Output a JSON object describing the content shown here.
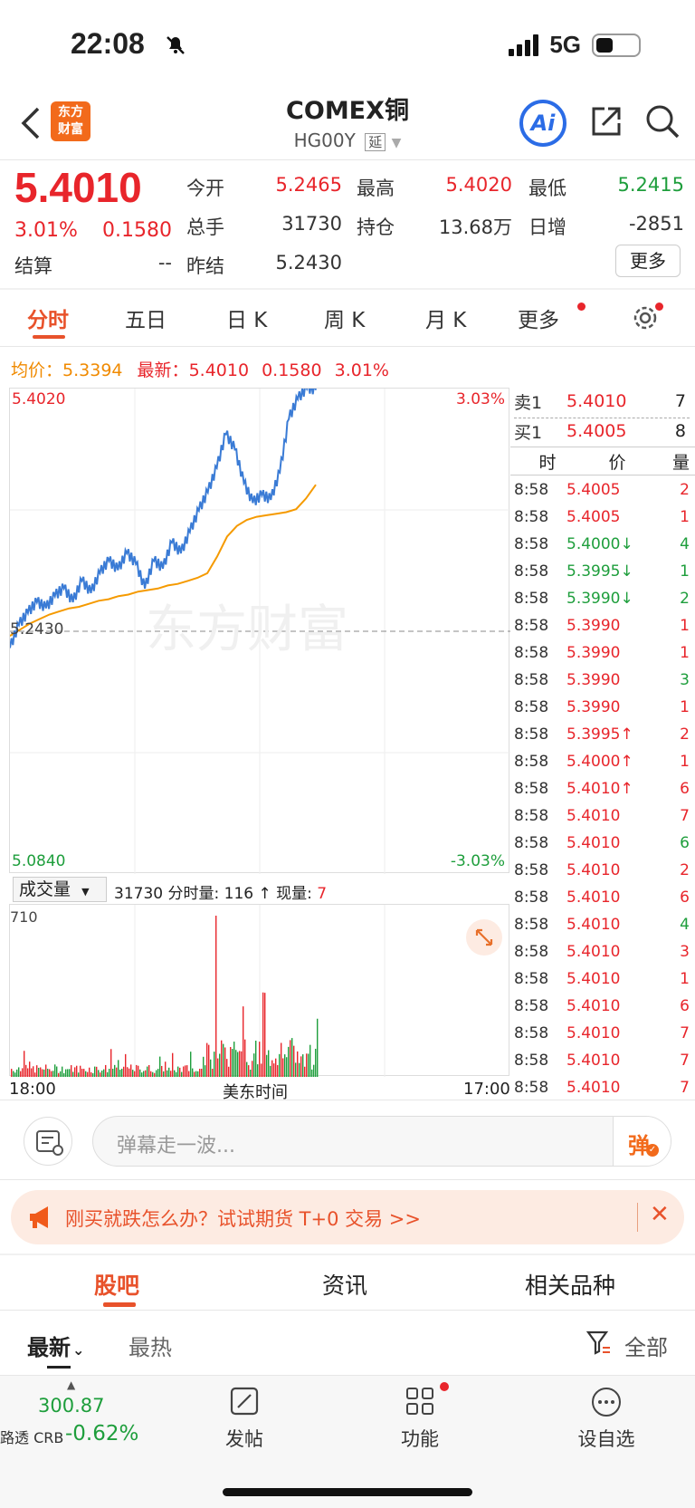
{
  "status": {
    "time": "22:08",
    "network": "5G"
  },
  "header": {
    "logo_text": "东方财富",
    "title": "COMEX铜",
    "code": "HG00Y",
    "delay_tag": "延",
    "ai_label": "Ai"
  },
  "quote": {
    "price": "5.4010",
    "change_pct": "3.01%",
    "change": "0.1580",
    "settle_label": "结算",
    "settle_value": "--",
    "open_label": "今开",
    "open_value": "5.2465",
    "high_label": "最高",
    "high_value": "5.4020",
    "low_label": "最低",
    "low_value": "5.2415",
    "volume_label": "总手",
    "volume_value": "31730",
    "oi_label": "持仓",
    "oi_value": "13.68万",
    "daily_inc_label": "日增",
    "daily_inc_value": "-2851",
    "prev_settle_label": "昨结",
    "prev_settle_value": "5.2430",
    "more_label": "更多"
  },
  "tabs": [
    "分时",
    "五日",
    "日 K",
    "周 K",
    "月 K",
    "更多"
  ],
  "chart_info": {
    "avg_label": "均价：",
    "avg_value": "5.3394",
    "latest_label": "最新：",
    "latest_value": "5.4010",
    "latest_change": "0.1580",
    "latest_pct": "3.01%"
  },
  "chart_data": {
    "type": "line",
    "ylim": [
      5.084,
      5.402
    ],
    "y_top_label": "5.4020",
    "y_mid_label": "5.2430",
    "y_bottom_label": "5.0840",
    "pct_top_label": "3.03%",
    "pct_bottom_label": "-3.03%",
    "x_start_label": "18:00",
    "x_mid_label": "美东时间",
    "x_end_label": "17:00",
    "watermark": "东方财富",
    "series": [
      {
        "values": [
          5.232,
          5.247,
          5.255,
          5.262,
          5.258,
          5.266,
          5.271,
          5.262,
          5.276,
          5.268,
          5.281,
          5.289,
          5.283,
          5.294,
          5.287,
          5.271,
          5.289,
          5.284,
          5.301,
          5.294,
          5.308,
          5.322,
          5.334,
          5.35,
          5.372,
          5.362,
          5.34,
          5.327,
          5.332,
          5.329,
          5.347,
          5.382,
          5.395,
          5.402,
          5.401
        ]
      },
      {
        "values": [
          5.24,
          5.244,
          5.248,
          5.251,
          5.254,
          5.256,
          5.258,
          5.259,
          5.261,
          5.263,
          5.264,
          5.266,
          5.267,
          5.269,
          5.27,
          5.271,
          5.273,
          5.274,
          5.276,
          5.278,
          5.281,
          5.292,
          5.305,
          5.312,
          5.316,
          5.318,
          5.319,
          5.32,
          5.321,
          5.323,
          5.33,
          5.339
        ]
      }
    ]
  },
  "volume": {
    "selector": "成交量",
    "total": "31730",
    "tick_label": "分时量:",
    "tick_value": "116",
    "arrow": "↑",
    "now_label": "现量:",
    "now_value": "7",
    "scale_label": "710"
  },
  "orderbook": {
    "ask_label": "卖1",
    "ask_price": "5.4010",
    "ask_qty": "7",
    "bid_label": "买1",
    "bid_price": "5.4005",
    "bid_qty": "8",
    "head_time": "时",
    "head_price": "价",
    "head_qty": "量",
    "trades": [
      {
        "t": "8:58",
        "p": "5.4005",
        "q": "2",
        "qc": "red"
      },
      {
        "t": "8:58",
        "p": "5.4005",
        "q": "1",
        "qc": "red"
      },
      {
        "t": "8:58",
        "p": "5.4000↓",
        "q": "4",
        "qc": "green"
      },
      {
        "t": "8:58",
        "p": "5.3995↓",
        "q": "1",
        "qc": "green"
      },
      {
        "t": "8:58",
        "p": "5.3990↓",
        "q": "2",
        "qc": "green"
      },
      {
        "t": "8:58",
        "p": "5.3990",
        "q": "1",
        "qc": "red"
      },
      {
        "t": "8:58",
        "p": "5.3990",
        "q": "1",
        "qc": "red"
      },
      {
        "t": "8:58",
        "p": "5.3990",
        "q": "3",
        "qc": "green"
      },
      {
        "t": "8:58",
        "p": "5.3990",
        "q": "1",
        "qc": "red"
      },
      {
        "t": "8:58",
        "p": "5.3995↑",
        "q": "2",
        "qc": "red"
      },
      {
        "t": "8:58",
        "p": "5.4000↑",
        "q": "1",
        "qc": "red"
      },
      {
        "t": "8:58",
        "p": "5.4010↑",
        "q": "6",
        "qc": "red"
      },
      {
        "t": "8:58",
        "p": "5.4010",
        "q": "7",
        "qc": "red"
      },
      {
        "t": "8:58",
        "p": "5.4010",
        "q": "6",
        "qc": "green"
      },
      {
        "t": "8:58",
        "p": "5.4010",
        "q": "2",
        "qc": "red"
      },
      {
        "t": "8:58",
        "p": "5.4010",
        "q": "6",
        "qc": "red"
      },
      {
        "t": "8:58",
        "p": "5.4010",
        "q": "4",
        "qc": "green"
      },
      {
        "t": "8:58",
        "p": "5.4010",
        "q": "3",
        "qc": "red"
      },
      {
        "t": "8:58",
        "p": "5.4010",
        "q": "1",
        "qc": "red"
      },
      {
        "t": "8:58",
        "p": "5.4010",
        "q": "6",
        "qc": "red"
      },
      {
        "t": "8:58",
        "p": "5.4010",
        "q": "7",
        "qc": "red"
      },
      {
        "t": "8:58",
        "p": "5.4010",
        "q": "7",
        "qc": "red"
      },
      {
        "t": "8:58",
        "p": "5.4010",
        "q": "7",
        "qc": "red"
      }
    ]
  },
  "comment": {
    "placeholder": "弹幕走一波...",
    "danmu_label": "弹"
  },
  "banner": {
    "text": "刚买就跌怎么办？试试期货 T+0 交易 >>"
  },
  "section_tabs": [
    "股吧",
    "资讯",
    "相关品种"
  ],
  "feed_filters": {
    "latest": "最新",
    "hot": "最热",
    "all": "全部"
  },
  "bottom": {
    "index_value": "300.87",
    "index_name": "路透 CRB",
    "index_pct": "-0.62%",
    "post": "发帖",
    "func": "功能",
    "watch": "设自选"
  }
}
